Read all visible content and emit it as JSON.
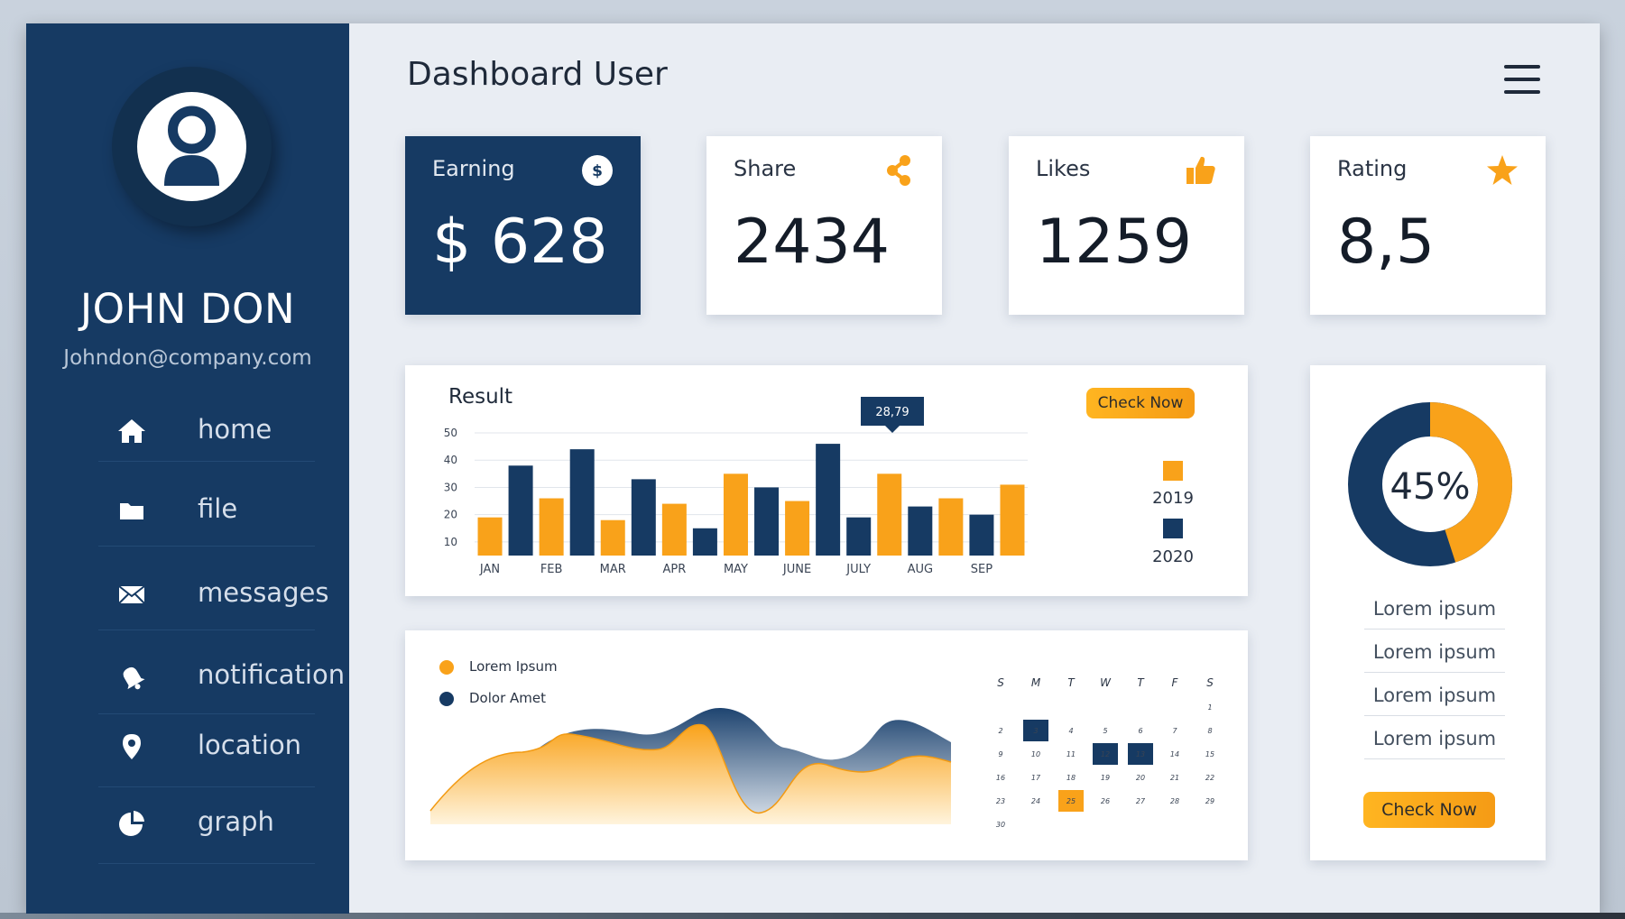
{
  "app": {
    "title": "Dashboard User"
  },
  "user": {
    "name": "JOHN DON",
    "email": "Johndon@company.com"
  },
  "nav": [
    {
      "label": "home",
      "icon": "home-icon"
    },
    {
      "label": "file",
      "icon": "folder-icon"
    },
    {
      "label": "messages",
      "icon": "envelope-icon"
    },
    {
      "label": "notification",
      "icon": "bell-icon"
    },
    {
      "label": "location",
      "icon": "location-pin-icon"
    },
    {
      "label": "graph",
      "icon": "pie-chart-icon"
    }
  ],
  "stats": [
    {
      "label": "Earning",
      "value": "$ 628",
      "icon": "dollar-icon"
    },
    {
      "label": "Share",
      "value": "2434",
      "icon": "share-icon"
    },
    {
      "label": "Likes",
      "value": "1259",
      "icon": "thumbs-up-icon"
    },
    {
      "label": "Rating",
      "value": "8,5",
      "icon": "star-icon"
    }
  ],
  "colors": {
    "navy": "#163a63",
    "orange": "#f9a21a",
    "background": "#e9edf3"
  },
  "result": {
    "title": "Result",
    "button": "Check Now",
    "tooltip": "28,79"
  },
  "chart_data": {
    "type": "bar",
    "title": "Result",
    "categories": [
      "JAN",
      "",
      "FEB",
      "",
      "MAR",
      "",
      "APR",
      "",
      "MAY",
      "",
      "JUNE",
      "",
      "JULY",
      "",
      "AUG",
      "",
      "SEP",
      ""
    ],
    "yticks": [
      10,
      20,
      30,
      40,
      50
    ],
    "ylim": [
      5,
      50
    ],
    "grid": true,
    "legend_position": "right",
    "series": [
      {
        "name": "2019",
        "color": "#f9a21a"
      },
      {
        "name": "2020",
        "color": "#163a63"
      }
    ],
    "bars": [
      {
        "value": 19,
        "series": 0
      },
      {
        "value": 38,
        "series": 1
      },
      {
        "value": 26,
        "series": 0
      },
      {
        "value": 44,
        "series": 1
      },
      {
        "value": 18,
        "series": 0
      },
      {
        "value": 33,
        "series": 1
      },
      {
        "value": 24,
        "series": 0
      },
      {
        "value": 15,
        "series": 1
      },
      {
        "value": 35,
        "series": 0
      },
      {
        "value": 30,
        "series": 1
      },
      {
        "value": 25,
        "series": 0
      },
      {
        "value": 46,
        "series": 1
      },
      {
        "value": 19,
        "series": 1
      },
      {
        "value": 35,
        "series": 0
      },
      {
        "value": 23,
        "series": 1
      },
      {
        "value": 26,
        "series": 0
      },
      {
        "value": 20,
        "series": 1
      },
      {
        "value": 31,
        "series": 0
      }
    ]
  },
  "donut": {
    "value": "45%",
    "fraction": 0.45
  },
  "lorem_list": [
    "Lorem ipsum",
    "Lorem ipsum",
    "Lorem ipsum",
    "Lorem ipsum"
  ],
  "side_button": "Check Now",
  "wave": {
    "legend": [
      {
        "label": "Lorem Ipsum",
        "color": "#f9a21a"
      },
      {
        "label": "Dolor Amet",
        "color": "#163a63"
      }
    ]
  },
  "calendar": {
    "headers": [
      "S",
      "M",
      "T",
      "W",
      "T",
      "F",
      "S"
    ],
    "days": [
      "1",
      "2",
      "3",
      "4",
      "5",
      "6",
      "7",
      "8",
      "9",
      "10",
      "11",
      "12",
      "13",
      "14",
      "15",
      "16",
      "17",
      "18",
      "19",
      "20",
      "21",
      "22",
      "23",
      "24",
      "25",
      "26",
      "27",
      "28",
      "29",
      "30"
    ],
    "start_weekday": 6,
    "highlight_navy": [
      "3",
      "12",
      "13"
    ],
    "highlight_orange": [
      "25"
    ]
  }
}
